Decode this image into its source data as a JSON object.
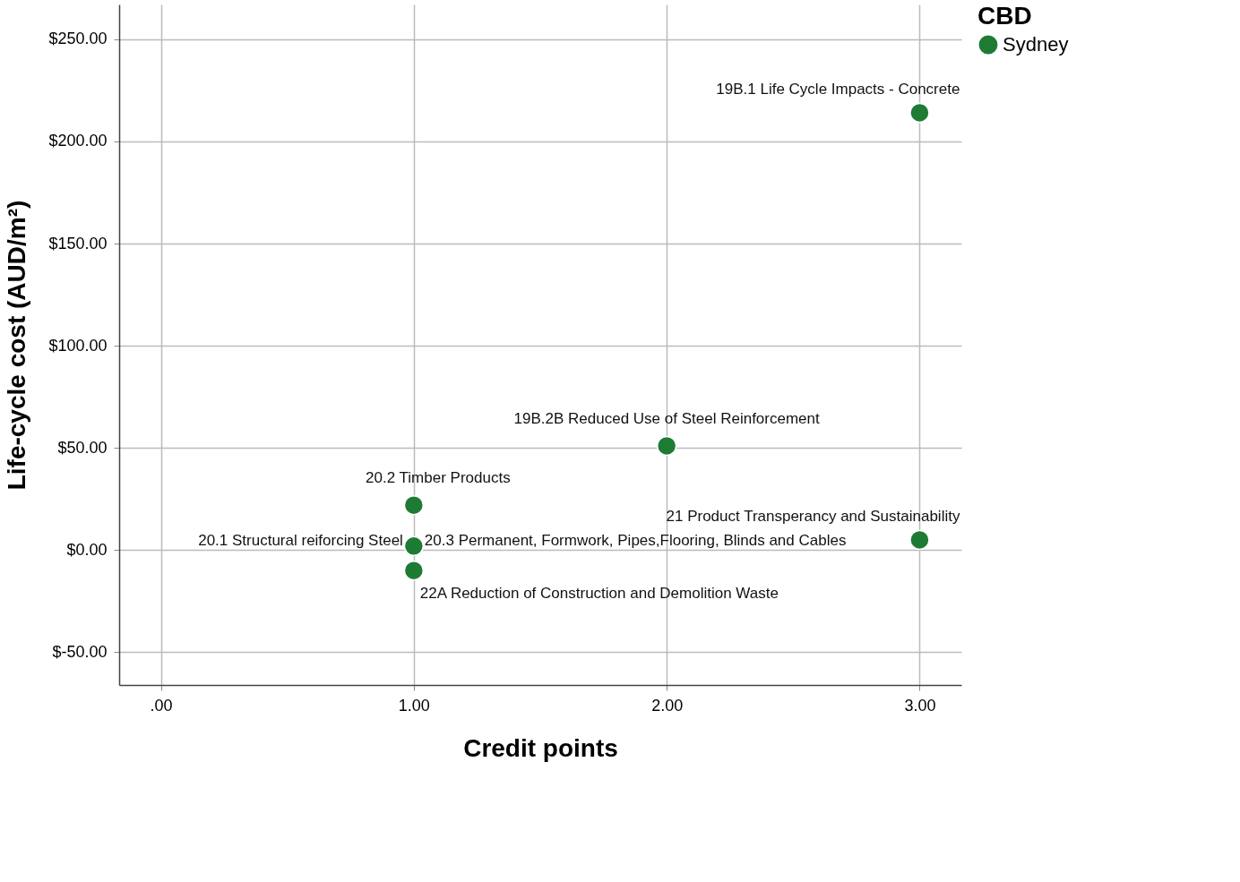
{
  "chart_data": {
    "type": "scatter",
    "xlabel": "Credit points",
    "ylabel": "Life-cycle cost (AUD/m²)",
    "legend_title": "CBD",
    "series": [
      {
        "name": "Sydney",
        "color": "#1e7b34",
        "x": [
          3,
          2,
          1,
          1,
          1,
          3
        ],
        "values": [
          214,
          51,
          22,
          2,
          -10,
          5
        ]
      }
    ],
    "annotations": [
      {
        "text": "19B.1 Life Cycle Impacts - Concrete",
        "x": 3,
        "y": 214
      },
      {
        "text": "19B.2B Reduced Use of Steel Reinforcement",
        "x": 2,
        "y": 51
      },
      {
        "text": "20.2 Timber Products",
        "x": 1,
        "y": 22
      },
      {
        "text": "20.1 Structural reiforcing Steel",
        "x": 1,
        "y": 2
      },
      {
        "text": "20.3 Permanent, Formwork, Pipes,Flooring, Blinds and Cables",
        "x": 1,
        "y": 2
      },
      {
        "text": "22A Reduction of Construction and Demolition Waste",
        "x": 1,
        "y": -10
      },
      {
        "text": "21 Product Transperancy and Sustainability",
        "x": 3,
        "y": 5
      }
    ],
    "xlim": [
      -0.165,
      3.165
    ],
    "ylim": [
      -66,
      267
    ],
    "xticks": [
      {
        "value": 0,
        "label": ".00"
      },
      {
        "value": 1,
        "label": "1.00"
      },
      {
        "value": 2,
        "label": "2.00"
      },
      {
        "value": 3,
        "label": "3.00"
      }
    ],
    "yticks": [
      {
        "value": -50,
        "label": "$-50.00"
      },
      {
        "value": 0,
        "label": "$0.00"
      },
      {
        "value": 50,
        "label": "$50.00"
      },
      {
        "value": 100,
        "label": "$100.00"
      },
      {
        "value": 150,
        "label": "$150.00"
      },
      {
        "value": 200,
        "label": "$200.00"
      },
      {
        "value": 250,
        "label": "$250.00"
      }
    ],
    "grid": true,
    "legend": "top right",
    "marker": "circle"
  }
}
